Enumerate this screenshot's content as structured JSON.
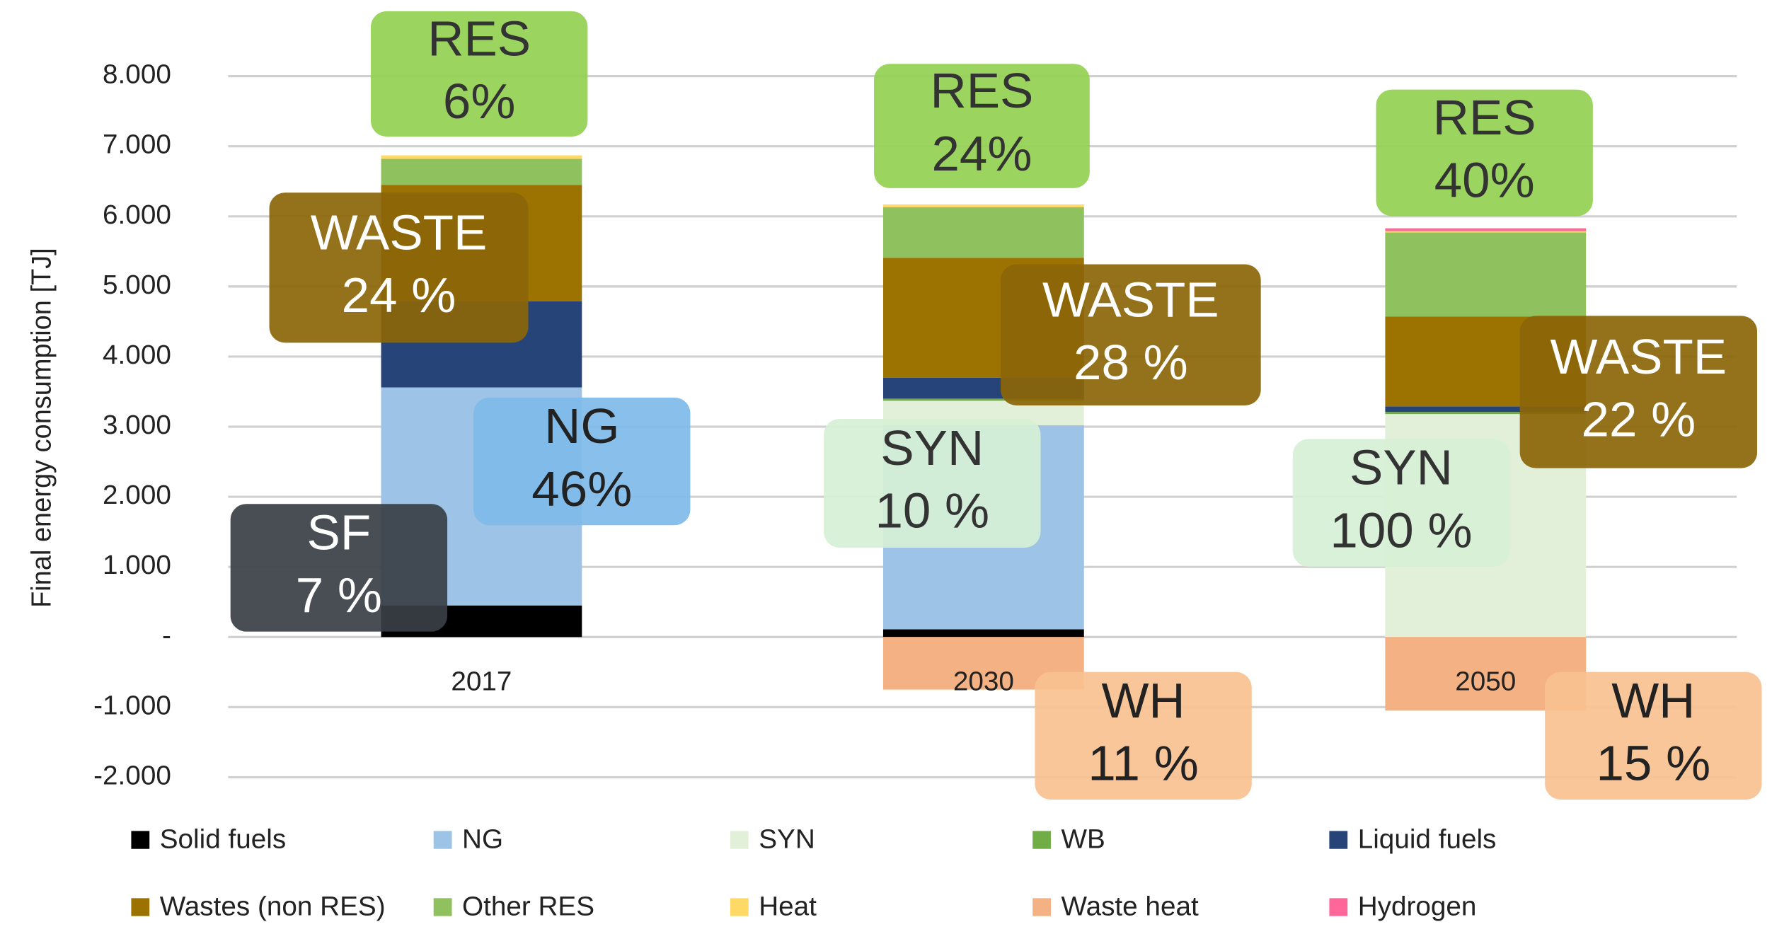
{
  "chart_data": {
    "type": "bar",
    "stacked": true,
    "y_label": "Final energy consumption [TJ]",
    "categories": [
      "2017",
      "2030",
      "2050"
    ],
    "series": [
      {
        "name": "Solid fuels",
        "color": "#000000",
        "values": [
          450,
          110,
          0
        ]
      },
      {
        "name": "NG",
        "color": "#9dc3e6",
        "values": [
          3110,
          2910,
          0
        ]
      },
      {
        "name": "SYN",
        "color": "#e2f0d9",
        "values": [
          0,
          350,
          3180
        ]
      },
      {
        "name": "WB",
        "color": "#70ad47",
        "values": [
          0,
          30,
          30
        ]
      },
      {
        "name": "Liquid fuels",
        "color": "#264478",
        "values": [
          1230,
          300,
          80
        ]
      },
      {
        "name": "Wastes (non RES)",
        "color": "#9c7300",
        "values": [
          1660,
          1710,
          1280
        ]
      },
      {
        "name": "Other RES",
        "color": "#8fc15e",
        "values": [
          370,
          720,
          1200
        ]
      },
      {
        "name": "Heat",
        "color": "#ffd966",
        "values": [
          50,
          40,
          20
        ]
      },
      {
        "name": "Waste heat",
        "color": "#f4b183",
        "values": [
          0,
          -750,
          -1050
        ]
      },
      {
        "name": "Hydrogen",
        "color": "#ff6699",
        "values": [
          0,
          0,
          40
        ]
      }
    ],
    "ylim": [
      -2000,
      8000
    ],
    "yticks": [
      {
        "value": -2000,
        "label": "-2.000"
      },
      {
        "value": -1000,
        "label": "-1.000"
      },
      {
        "value": 0,
        "label": "-"
      },
      {
        "value": 1000,
        "label": "1.000"
      },
      {
        "value": 2000,
        "label": "2.000"
      },
      {
        "value": 3000,
        "label": "3.000"
      },
      {
        "value": 4000,
        "label": "4.000"
      },
      {
        "value": 5000,
        "label": "5.000"
      },
      {
        "value": 6000,
        "label": "6.000"
      },
      {
        "value": 7000,
        "label": "7.000"
      },
      {
        "value": 8000,
        "label": "8.000"
      }
    ],
    "grid": true,
    "legend": "bottom",
    "annotations": [
      {
        "lines": [
          "RES",
          "6%"
        ],
        "color": "#92d050",
        "text_color": "#333333"
      },
      {
        "lines": [
          "WASTE",
          "24 %"
        ],
        "color": "#8b6508",
        "text_color": "#ffffff"
      },
      {
        "lines": [
          "NG",
          "46%"
        ],
        "color": "#7fbbe9",
        "text_color": "#222222"
      },
      {
        "lines": [
          "SF",
          "7 %"
        ],
        "color": "#3a3f45",
        "text_color": "#ffffff"
      },
      {
        "lines": [
          "RES",
          "24%"
        ],
        "color": "#92d050",
        "text_color": "#333333"
      },
      {
        "lines": [
          "WASTE",
          "28 %"
        ],
        "color": "#8b6508",
        "text_color": "#ffffff"
      },
      {
        "lines": [
          "SYN",
          "10 %"
        ],
        "color": "#d6f0d6",
        "text_color": "#333333"
      },
      {
        "lines": [
          "WH",
          "11 %"
        ],
        "color": "#f8c190",
        "text_color": "#222222"
      },
      {
        "lines": [
          "RES",
          "40%"
        ],
        "color": "#92d050",
        "text_color": "#333333"
      },
      {
        "lines": [
          "WASTE",
          "22 %"
        ],
        "color": "#8b6508",
        "text_color": "#ffffff"
      },
      {
        "lines": [
          "SYN",
          "100 %"
        ],
        "color": "#d6f0d6",
        "text_color": "#333333"
      },
      {
        "lines": [
          "WH",
          "15 %"
        ],
        "color": "#f8c190",
        "text_color": "#222222"
      }
    ]
  }
}
